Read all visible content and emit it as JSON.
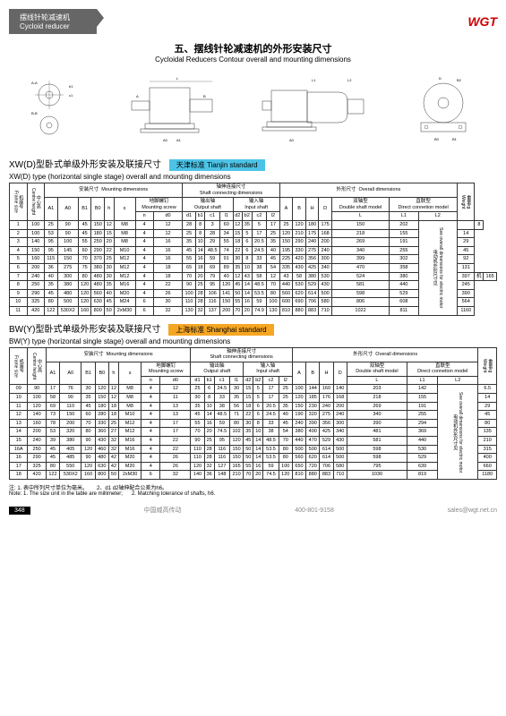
{
  "header": {
    "cn": "摆线针轮减速机",
    "en": "Cycloid reducer",
    "logo": "WGT"
  },
  "title": {
    "cn": "五、摆线针轮减速机的外形安装尺寸",
    "en": "Cycloidal Reducers Contour overall and mounting dimensions"
  },
  "section1": {
    "cn": "XW(D)型卧式单级外形安装及联接尺寸",
    "en": "XW(D) type (horizontal single stage) overall and mounting dimensions",
    "tag": "天津标准 Tianjin standard"
  },
  "section2": {
    "cn": "BW(Y)型卧式单级外形安装及联接尺寸",
    "en": "BW(Y) type (horizontal single stage) overall and mounting dimensions",
    "tag": "上海标准 Shanghai standard"
  },
  "groupHeaders": {
    "frame_cn": "机座号",
    "frame_en": "Frame size",
    "centre_cn": "中心高",
    "centre_en": "Centre height",
    "mount_cn": "安装尺寸",
    "mount_en": "Mounting dimensions",
    "screw_cn": "地脚螺钉",
    "screw_en": "Mounting screw",
    "shaft_cn": "轴伸连接尺寸",
    "shaft_en": "Shaft connecting dimensions",
    "out_cn": "输出轴",
    "out_en": "Output shaft",
    "in_cn": "输入轴",
    "in_en": "Input shaft",
    "overall_cn": "外形尺寸",
    "overall_en": "Overall dimensions",
    "double_cn": "双轴型",
    "double_en": "Double shaft model",
    "direct_cn": "直联型",
    "direct_en": "Direct connetion model",
    "weight_cn": "重量kg",
    "weight_en": "Weight",
    "motor_cn": "电动机外形尺寸见",
    "motor_en": "See overall dimensions for electric motor"
  },
  "cols": {
    "t1": [
      "A1",
      "A0",
      "B1",
      "B0",
      "h",
      "s",
      "n",
      "d0",
      "d1",
      "b1",
      "c1",
      "l1",
      "d2",
      "b2",
      "c2",
      "l2",
      "A",
      "B",
      "H",
      "D",
      "L",
      "L1",
      "L2"
    ],
    "t2": [
      "A1",
      "A0",
      "B1",
      "B0",
      "h",
      "s",
      "n",
      "d0",
      "d1",
      "b1",
      "c1",
      "l1",
      "d2",
      "b2",
      "c2",
      "l2",
      "A",
      "B",
      "H",
      "D",
      "L",
      "L1",
      "L2"
    ]
  },
  "table1": [
    [
      "1",
      "100",
      "25",
      "90",
      "45",
      "150",
      "12",
      "M8",
      "4",
      "12",
      "28",
      "8",
      "3",
      "60",
      "12",
      "35",
      "5",
      "17",
      "25",
      "120",
      "180",
      "175",
      "150",
      "202",
      "141",
      "",
      "8"
    ],
    [
      "2",
      "100",
      "53",
      "90",
      "45",
      "180",
      "15",
      "M8",
      "4",
      "12",
      "25",
      "8",
      "28",
      "34",
      "15",
      "5",
      "17",
      "25",
      "120",
      "210",
      "175",
      "168",
      "218",
      "155",
      "",
      "14"
    ],
    [
      "3",
      "140",
      "95",
      "100",
      "55",
      "250",
      "20",
      "M8",
      "4",
      "16",
      "35",
      "10",
      "29",
      "55",
      "18",
      "6",
      "20.5",
      "35",
      "150",
      "290",
      "240",
      "200",
      "269",
      "191",
      "勾",
      "29"
    ],
    [
      "4",
      "150",
      "95",
      "145",
      "60",
      "290",
      "22",
      "M10",
      "4",
      "16",
      "45",
      "14",
      "48.5",
      "74",
      "22",
      "6",
      "24.5",
      "40",
      "195",
      "330",
      "275",
      "240",
      "340",
      "255",
      "见",
      "45"
    ],
    [
      "5",
      "160",
      "115",
      "150",
      "70",
      "370",
      "25",
      "M12",
      "4",
      "16",
      "55",
      "16",
      "59",
      "91",
      "30",
      "8",
      "33",
      "45",
      "225",
      "420",
      "356",
      "300",
      "399",
      "302",
      "电",
      "92"
    ],
    [
      "6",
      "200",
      "36",
      "275",
      "75",
      "380",
      "30",
      "M12",
      "4",
      "18",
      "65",
      "18",
      "69",
      "89",
      "35",
      "10",
      "38",
      "54",
      "335",
      "430",
      "425",
      "340",
      "470",
      "358",
      "动",
      "131"
    ],
    [
      "7",
      "240",
      "40",
      "300",
      "80",
      "480",
      "30",
      "M12",
      "4",
      "18",
      "70",
      "20",
      "79",
      "40",
      "12",
      "43",
      "58",
      "12",
      "43",
      "58",
      "380",
      "530",
      "524",
      "380",
      "522",
      "397",
      "机",
      "165"
    ],
    [
      "8",
      "250",
      "35",
      "380",
      "120",
      "480",
      "35",
      "M16",
      "4",
      "22",
      "90",
      "25",
      "95",
      "120",
      "45",
      "14",
      "48.5",
      "70",
      "440",
      "530",
      "529",
      "430",
      "581",
      "440",
      "外",
      "245"
    ],
    [
      "9",
      "290",
      "45",
      "480",
      "120",
      "560",
      "40",
      "M20",
      "4",
      "26",
      "100",
      "28",
      "106",
      "141",
      "50",
      "14",
      "53.5",
      "80",
      "560",
      "620",
      "614",
      "500",
      "598",
      "529",
      "形",
      "390"
    ],
    [
      "10",
      "325",
      "80",
      "500",
      "120",
      "630",
      "45",
      "M24",
      "6",
      "30",
      "110",
      "28",
      "116",
      "150",
      "55",
      "16",
      "59",
      "100",
      "600",
      "690",
      "706",
      "580",
      "806",
      "608",
      "尺",
      "564"
    ],
    [
      "11",
      "420",
      "122",
      "530X2",
      "160",
      "800",
      "50",
      "2xM30",
      "6",
      "32",
      "130",
      "32",
      "137",
      "200",
      "70",
      "20",
      "74.9",
      "130",
      "810",
      "880",
      "883",
      "710",
      "1022",
      "811",
      "寸",
      "1160"
    ]
  ],
  "table2": [
    [
      "09",
      "90",
      "17",
      "76",
      "30",
      "120",
      "12",
      "M8",
      "4",
      "12",
      "25",
      "6",
      "24.5",
      "30",
      "15",
      "5",
      "17",
      "25",
      "100",
      "144",
      "160",
      "140",
      "203",
      "142",
      "",
      "6.5"
    ],
    [
      "10",
      "100",
      "58",
      "90",
      "35",
      "150",
      "12",
      "M8",
      "4",
      "11",
      "30",
      "8",
      "33",
      "35",
      "15",
      "5",
      "17",
      "25",
      "120",
      "185",
      "176",
      "168",
      "218",
      "155",
      "",
      "14"
    ],
    [
      "11",
      "120",
      "69",
      "110",
      "45",
      "180",
      "18",
      "M8",
      "4",
      "13",
      "35",
      "10",
      "38",
      "56",
      "18",
      "6",
      "20.5",
      "35",
      "150",
      "230",
      "240",
      "200",
      "269",
      "191",
      "勾",
      "29"
    ],
    [
      "12",
      "140",
      "73",
      "150",
      "60",
      "280",
      "18",
      "M10",
      "4",
      "13",
      "45",
      "14",
      "48.5",
      "71",
      "22",
      "6",
      "24.5",
      "40",
      "190",
      "320",
      "275",
      "240",
      "340",
      "255",
      "见",
      "45"
    ],
    [
      "13",
      "160",
      "78",
      "200",
      "70",
      "330",
      "25",
      "M12",
      "4",
      "17",
      "55",
      "16",
      "59",
      "80",
      "30",
      "8",
      "33",
      "45",
      "240",
      "390",
      "356",
      "300",
      "390",
      "294",
      "电",
      "80"
    ],
    [
      "14",
      "200",
      "53",
      "320",
      "80",
      "360",
      "27",
      "M12",
      "4",
      "17",
      "70",
      "20",
      "74.5",
      "102",
      "35",
      "10",
      "38",
      "54",
      "380",
      "400",
      "425",
      "340",
      "481",
      "369",
      "动",
      "135"
    ],
    [
      "15",
      "240",
      "39",
      "380",
      "90",
      "430",
      "32",
      "M16",
      "4",
      "22",
      "90",
      "25",
      "95",
      "120",
      "45",
      "14",
      "48.5",
      "70",
      "440",
      "470",
      "529",
      "430",
      "581",
      "440",
      "机",
      "210"
    ],
    [
      "16A",
      "250",
      "45",
      "405",
      "120",
      "460",
      "32",
      "M16",
      "4",
      "22",
      "110",
      "28",
      "116",
      "150",
      "50",
      "14",
      "53.5",
      "80",
      "500",
      "500",
      "614",
      "500",
      "598",
      "530",
      "外",
      "315"
    ],
    [
      "16",
      "290",
      "45",
      "485",
      "90",
      "480",
      "42",
      "M20",
      "4",
      "26",
      "110",
      "28",
      "116",
      "150",
      "50",
      "14",
      "53.5",
      "80",
      "560",
      "620",
      "614",
      "500",
      "598",
      "529",
      "形",
      "400"
    ],
    [
      "17",
      "325",
      "80",
      "550",
      "120",
      "630",
      "42",
      "M20",
      "4",
      "26",
      "120",
      "32",
      "127",
      "165",
      "55",
      "16",
      "59",
      "100",
      "650",
      "720",
      "706",
      "580",
      "795",
      "639",
      "尺",
      "660"
    ],
    [
      "18",
      "420",
      "122",
      "530X2",
      "160",
      "800",
      "50",
      "2xM30",
      "6",
      "32",
      "140",
      "36",
      "148",
      "210",
      "70",
      "20",
      "74.5",
      "120",
      "810",
      "880",
      "883",
      "710",
      "1030",
      "819",
      "寸",
      "1180"
    ]
  ],
  "notes": {
    "n1_cn": "注: 1. 表中所列尺寸单位为毫米。",
    "n1_en": "Note: 1. The size unit in the table are millimeter;",
    "n2_cn": "2、d1 d2轴伸配合公差为h6。",
    "n2_en": "2. Matching tolerance of shafts, h6."
  },
  "footer": {
    "page": "348",
    "company": "中国威高传动",
    "phone": "400-801-9158",
    "email": "sales@wgt.net.cn"
  }
}
